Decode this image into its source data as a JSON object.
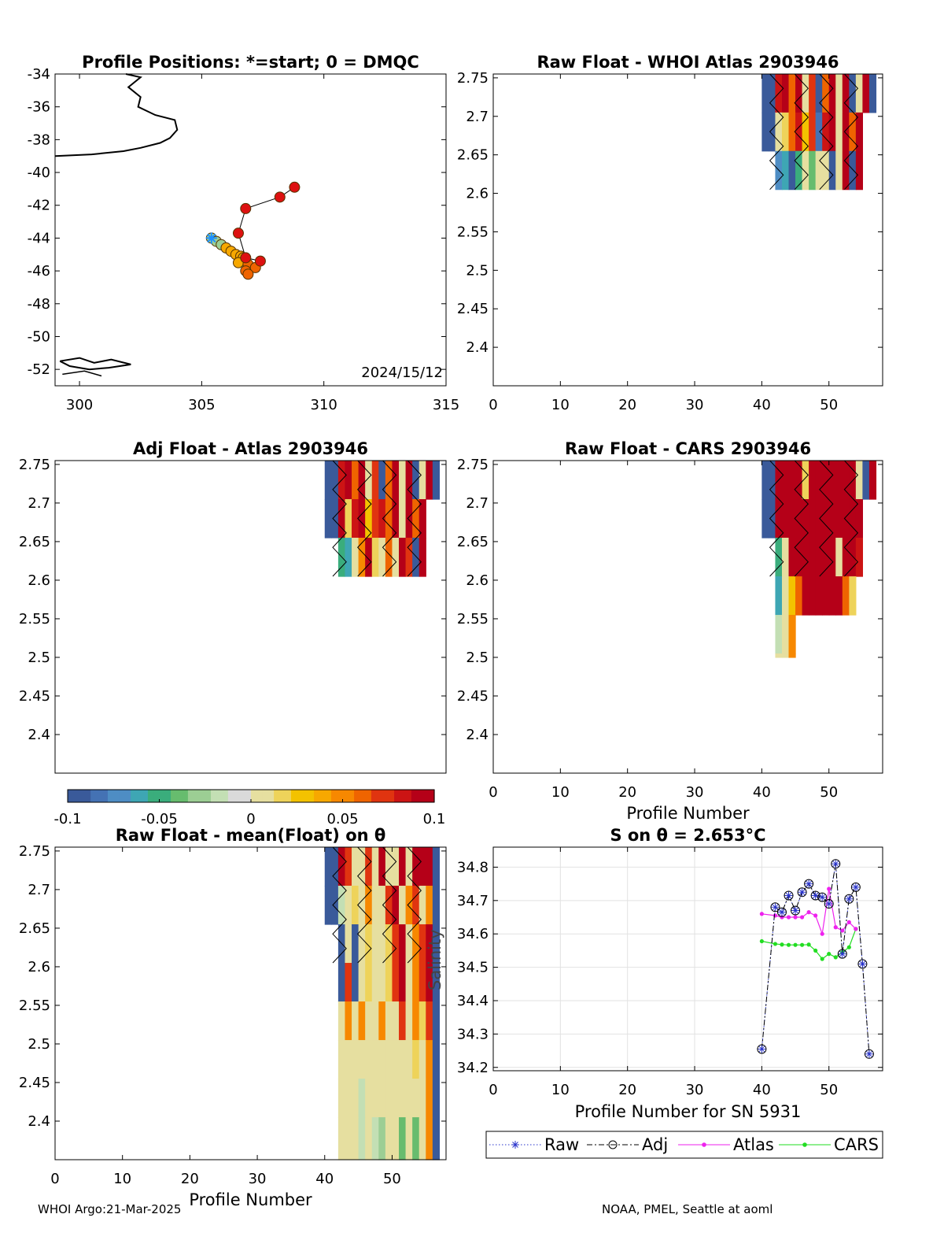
{
  "footer": {
    "left": "WHOI Argo:21-Mar-2025",
    "right": "NOAA, PMEL, Seattle at aoml"
  },
  "colors": {
    "colormap": [
      "#3a5a9a",
      "#4472b4",
      "#4e8dc4",
      "#3ea6b4",
      "#3aad7c",
      "#67bc6e",
      "#9cce94",
      "#c3dfb4",
      "#dadada",
      "#e6dfa0",
      "#eed35a",
      "#f3c200",
      "#f7a800",
      "#f78800",
      "#ef6400",
      "#e03410",
      "#cc1414",
      "#b50018"
    ],
    "raw": "#2a34cc",
    "adj": "#000000",
    "atlas": "#ee22ee",
    "cars": "#22dd22"
  },
  "chart_data": [
    {
      "id": "map",
      "type": "scatter",
      "title": "Profile Positions: *=start; 0 = DMQC",
      "xticks": [
        "300",
        "305",
        "310",
        "315"
      ],
      "yticks": [
        "-34",
        "-36",
        "-38",
        "-40",
        "-42",
        "-44",
        "-46",
        "-48",
        "-50",
        "-52"
      ],
      "xlim": [
        299,
        315
      ],
      "ylim": [
        -53,
        -34
      ],
      "date_label": "2024/15/12",
      "track": [
        [
          305.4,
          -44.0
        ],
        [
          305.6,
          -44.2
        ],
        [
          305.8,
          -44.4
        ],
        [
          306.0,
          -44.6
        ],
        [
          306.2,
          -44.8
        ],
        [
          306.4,
          -45.0
        ],
        [
          306.6,
          -45.1
        ],
        [
          306.7,
          -45.2
        ],
        [
          306.5,
          -45.5
        ],
        [
          306.9,
          -45.6
        ],
        [
          306.8,
          -46.0
        ],
        [
          307.2,
          -45.8
        ],
        [
          306.9,
          -46.2
        ],
        [
          307.4,
          -45.4
        ],
        [
          306.8,
          -45.2
        ],
        [
          306.5,
          -43.7
        ],
        [
          306.8,
          -42.2
        ],
        [
          308.2,
          -41.5
        ],
        [
          308.8,
          -40.9
        ]
      ]
    },
    {
      "id": "raw_atlas",
      "type": "heatmap",
      "title": "Raw Float - WHOI Atlas  2903946",
      "xlim": [
        0,
        58
      ],
      "ylim": [
        2.35,
        2.755
      ],
      "xticks": [
        "0",
        "10",
        "20",
        "30",
        "40",
        "50"
      ],
      "yticks": [
        "2.75",
        "2.7",
        "2.65",
        "2.6",
        "2.55",
        "2.5",
        "2.45",
        "2.4"
      ],
      "rows": [
        {
          "top": 2.755,
          "bottom": 2.705,
          "x0": 40,
          "cells": [
            -0.1,
            -0.1,
            0.08,
            0.09,
            0.06,
            0.1,
            0.01,
            0.07,
            -0.1,
            0.06,
            0.1,
            0.01,
            0.09,
            -0.1,
            0.0,
            0.1,
            -0.1
          ]
        },
        {
          "top": 2.705,
          "bottom": 2.655,
          "x0": 40,
          "cells": [
            -0.1,
            -0.1,
            0.0,
            0.02,
            0.06,
            0.08,
            0.03,
            0.07,
            -0.08,
            0.08,
            0.1,
            0.01,
            0.09,
            0.06,
            0.1
          ]
        },
        {
          "top": 2.655,
          "bottom": 2.605,
          "x0": 42,
          "cells": [
            -0.07,
            -0.06,
            -0.1,
            -0.05,
            0.0,
            -0.04,
            0.0,
            0.01,
            -0.1,
            0.0,
            0.1,
            -0.1,
            0.1
          ]
        }
      ]
    },
    {
      "id": "adj_atlas",
      "type": "heatmap",
      "title": "Adj Float - Atlas  2903946",
      "xlim": [
        0,
        58
      ],
      "ylim": [
        2.35,
        2.755
      ],
      "xticks": [],
      "yticks": [
        "2.75",
        "2.7",
        "2.65",
        "2.6",
        "2.55",
        "2.5",
        "2.45",
        "2.4"
      ],
      "rows": [
        {
          "top": 2.755,
          "bottom": 2.705,
          "x0": 40,
          "cells": [
            -0.1,
            -0.1,
            0.08,
            0.09,
            0.06,
            0.1,
            0.01,
            0.07,
            -0.1,
            0.06,
            0.1,
            0.01,
            0.09,
            -0.1,
            0.0,
            0.1,
            -0.1
          ]
        },
        {
          "top": 2.705,
          "bottom": 2.655,
          "x0": 40,
          "cells": [
            -0.1,
            -0.1,
            0.1,
            0.02,
            0.08,
            0.1,
            0.03,
            0.07,
            0.08,
            0.06,
            0.1,
            0.01,
            0.09,
            0.06,
            0.1
          ]
        },
        {
          "top": 2.655,
          "bottom": 2.605,
          "x0": 42,
          "cells": [
            -0.05,
            -0.06,
            0.0,
            0.05,
            0.1,
            0.02,
            0.0,
            0.06,
            0.0,
            0.1,
            0.07,
            -0.1,
            0.1
          ]
        }
      ]
    },
    {
      "id": "raw_cars",
      "type": "heatmap",
      "title": "Raw Float - CARS  2903946",
      "xlim": [
        0,
        58
      ],
      "ylim": [
        2.35,
        2.755
      ],
      "xticks": [
        "0",
        "10",
        "20",
        "30",
        "40",
        "50"
      ],
      "yticks": [
        "2.75",
        "2.7",
        "2.65",
        "2.6",
        "2.55",
        "2.5",
        "2.45",
        "2.4"
      ],
      "xlabel": "Profile Number",
      "rows": [
        {
          "top": 2.755,
          "bottom": 2.705,
          "x0": 40,
          "cells": [
            -0.1,
            -0.1,
            0.1,
            0.1,
            0.1,
            0.1,
            0.02,
            0.1,
            0.1,
            0.1,
            0.1,
            0.09,
            0.1,
            0.1,
            0.0,
            -0.1,
            0.1
          ]
        },
        {
          "top": 2.705,
          "bottom": 2.655,
          "x0": 40,
          "cells": [
            -0.1,
            -0.1,
            0.1,
            0.1,
            0.1,
            0.1,
            0.1,
            0.1,
            0.1,
            0.1,
            0.1,
            0.1,
            0.1,
            0.1,
            0.1
          ]
        },
        {
          "top": 2.655,
          "bottom": 2.605,
          "x0": 42,
          "cells": [
            -0.05,
            0.0,
            0.1,
            0.1,
            0.1,
            0.09,
            0.1,
            0.1,
            0.1,
            0.0,
            0.1,
            0.09,
            0.08
          ]
        },
        {
          "top": 2.605,
          "bottom": 2.555,
          "x0": 42,
          "cells": [
            -0.06,
            0.0,
            0.03,
            0.06,
            0.1,
            0.1,
            0.09,
            0.1,
            0.1,
            0.09,
            0.06,
            0.02
          ]
        },
        {
          "top": 2.555,
          "bottom": 2.505,
          "x0": 42,
          "cells": [
            -0.02,
            0.01,
            0.05
          ]
        },
        {
          "top": 2.505,
          "bottom": 2.5,
          "x0": 42,
          "cells": [
            0.01,
            0.01,
            0.05
          ]
        }
      ]
    },
    {
      "id": "raw_mean",
      "type": "heatmap",
      "title": "Raw Float - mean(Float) on θ",
      "xlim": [
        0,
        58
      ],
      "ylim": [
        2.35,
        2.755
      ],
      "xticks": [
        "0",
        "10",
        "20",
        "30",
        "40",
        "50"
      ],
      "yticks": [
        "2.75",
        "2.7",
        "2.65",
        "2.6",
        "2.55",
        "2.5",
        "2.45",
        "2.4"
      ],
      "xlabel": "Profile Number",
      "rows": [
        {
          "top": 2.755,
          "bottom": 2.705,
          "x0": 40,
          "cells": [
            -0.1,
            -0.1,
            0.1,
            0.07,
            0.0,
            0.01,
            0.07,
            0.0,
            0.1,
            0.0,
            0.0,
            0.1,
            0.0,
            0.1,
            0.1,
            0.1,
            -0.1
          ]
        },
        {
          "top": 2.705,
          "bottom": 2.655,
          "x0": 40,
          "cells": [
            -0.1,
            -0.1,
            -0.02,
            0.0,
            0.02,
            0.01,
            0.05,
            0.0,
            0.0,
            0.07,
            0.1,
            0.0,
            0.05,
            0.07,
            0.0,
            0.05,
            -0.1
          ]
        },
        {
          "top": 2.655,
          "bottom": 2.605,
          "x0": 42,
          "cells": [
            -0.1,
            0.0,
            -0.1,
            0.0,
            0.02,
            0.0,
            0.0,
            0.02,
            0.07,
            0.1,
            0.0,
            0.05,
            0.07,
            0.1,
            -0.1
          ]
        },
        {
          "top": 2.605,
          "bottom": 2.555,
          "x0": 42,
          "cells": [
            -0.1,
            0.07,
            -0.1,
            0.0,
            0.02,
            0.0,
            0.0,
            0.02,
            0.07,
            0.1,
            0.0,
            0.05,
            0.07,
            0.1,
            -0.1
          ]
        },
        {
          "top": 2.555,
          "bottom": 2.505,
          "x0": 42,
          "cells": [
            0.0,
            0.05,
            0.0,
            0.05,
            0.0,
            0.0,
            0.05,
            0.0,
            0.0,
            0.07,
            0.0,
            0.05,
            0.02,
            0.07,
            -0.1
          ]
        },
        {
          "top": 2.505,
          "bottom": 2.455,
          "x0": 42,
          "cells": [
            0.0,
            0.0,
            0.01,
            0.0,
            0.0,
            0.0,
            0.0,
            0.0,
            0.0,
            0.0,
            0.0,
            0.02,
            0.0,
            0.05,
            -0.1
          ]
        },
        {
          "top": 2.455,
          "bottom": 2.405,
          "x0": 42,
          "cells": [
            0.0,
            0.0,
            0.0,
            -0.02,
            0.0,
            0.0,
            0.0,
            0.0,
            0.0,
            0.0,
            0.0,
            0.0,
            0.0,
            0.05,
            -0.1
          ]
        },
        {
          "top": 2.405,
          "bottom": 2.35,
          "x0": 42,
          "cells": [
            0.0,
            0.0,
            0.0,
            -0.02,
            0.0,
            -0.02,
            -0.03,
            0.0,
            0.0,
            -0.04,
            0.0,
            -0.04,
            0.0,
            0.05,
            -0.1
          ]
        }
      ]
    },
    {
      "id": "salinity",
      "type": "line",
      "title": "S on θ = 2.653°C",
      "xlim": [
        0,
        58
      ],
      "ylim": [
        34.19,
        34.86
      ],
      "xticks": [
        "0",
        "10",
        "20",
        "30",
        "40",
        "50"
      ],
      "yticks": [
        "34.8",
        "34.7",
        "34.6",
        "34.5",
        "34.4",
        "34.3",
        "34.2"
      ],
      "xlabel": "Profile Number for SN 5931",
      "ylabel": "Salinity",
      "series": [
        {
          "name": "Raw",
          "x": [
            40,
            42,
            43,
            44,
            45,
            46,
            47,
            48,
            49,
            50,
            51,
            52,
            53,
            54,
            55,
            56
          ],
          "y": [
            34.255,
            34.68,
            34.665,
            34.715,
            34.67,
            34.725,
            34.75,
            34.715,
            34.71,
            34.69,
            34.81,
            34.54,
            34.705,
            34.74,
            34.51,
            34.24
          ]
        },
        {
          "name": "Adj",
          "x": [
            40,
            42,
            43,
            44,
            45,
            46,
            47,
            48,
            49,
            50,
            51,
            52,
            53,
            54,
            55,
            56
          ],
          "y": [
            34.255,
            34.68,
            34.665,
            34.715,
            34.67,
            34.725,
            34.75,
            34.715,
            34.71,
            34.69,
            34.81,
            34.54,
            34.705,
            34.74,
            34.51,
            34.24
          ]
        },
        {
          "name": "Atlas",
          "x": [
            40,
            42,
            43,
            44,
            45,
            46,
            47,
            48,
            49,
            50,
            51,
            52,
            53,
            54
          ],
          "y": [
            34.66,
            34.655,
            34.65,
            34.65,
            34.65,
            34.65,
            34.665,
            34.655,
            34.6,
            34.735,
            34.62,
            34.61,
            34.635,
            34.615
          ]
        },
        {
          "name": "CARS",
          "x": [
            40,
            42,
            43,
            44,
            45,
            46,
            47,
            48,
            49,
            50,
            51,
            52,
            53,
            54
          ],
          "y": [
            34.578,
            34.57,
            34.568,
            34.567,
            34.567,
            34.567,
            34.568,
            34.55,
            34.525,
            34.54,
            34.53,
            34.545,
            34.56,
            34.615
          ]
        }
      ]
    }
  ],
  "colorbar": {
    "ticks": [
      "-0.1",
      "-0.05",
      "0",
      "0.05",
      "0.1"
    ]
  },
  "stray_labels": {
    "salinity_axis": "Salinity"
  }
}
